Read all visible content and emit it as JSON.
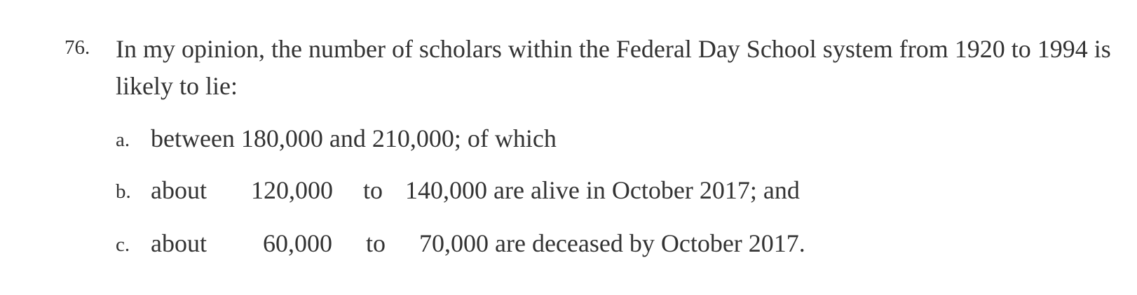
{
  "paragraph": {
    "number": "76.",
    "text": "In my opinion, the number of scholars within the Federal Day School system from 1920 to 1994 is likely to lie:"
  },
  "items": [
    {
      "letter": "a.",
      "text": "between 180,000 and 210,000; of which"
    },
    {
      "letter": "b.",
      "about": "about",
      "range_start": "120,000",
      "to": "to",
      "rest": "140,000 are alive in October 2017; and"
    },
    {
      "letter": "c.",
      "about": "about",
      "range_start": "60,000",
      "to": "to",
      "rest": "70,000 are deceased by October 2017."
    }
  ]
}
